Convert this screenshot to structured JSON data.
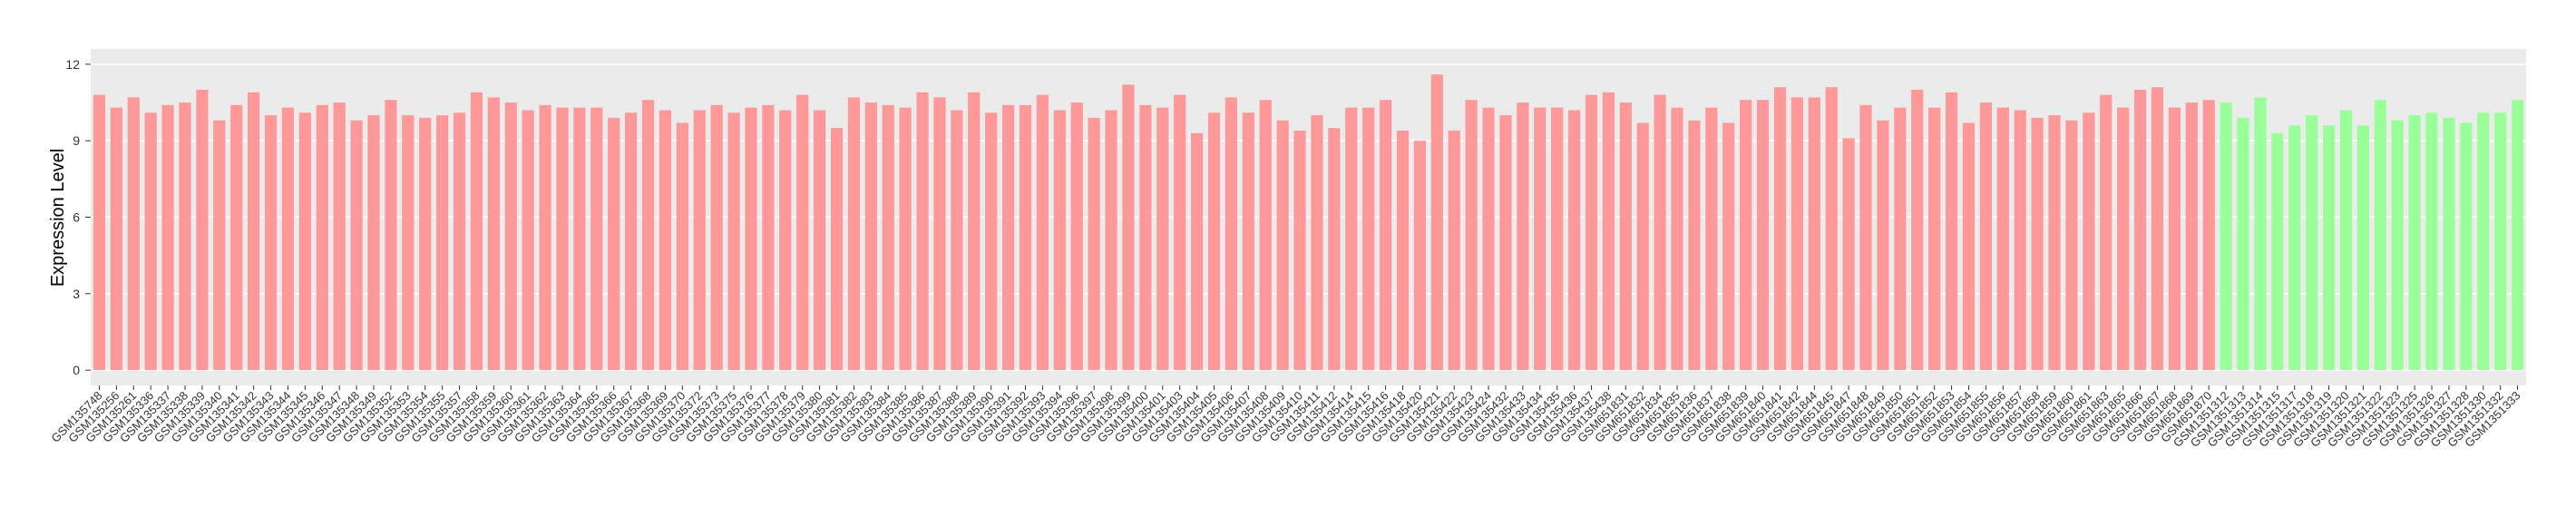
{
  "chart_data": {
    "type": "bar",
    "y_label": "Expression Level",
    "ylim": [
      -0.6,
      12.6
    ],
    "yticks": [
      0,
      3,
      6,
      9,
      12
    ],
    "grid": true,
    "groups": [
      {
        "color": "#ff9999",
        "categories": [
          "GSM135748",
          "GSM135256",
          "GSM135261",
          "GSM135336",
          "GSM135337",
          "GSM135338",
          "GSM135339",
          "GSM135340",
          "GSM135341",
          "GSM135342",
          "GSM135343",
          "GSM135344",
          "GSM135345",
          "GSM135346",
          "GSM135347",
          "GSM135348",
          "GSM135349",
          "GSM135352",
          "GSM135353",
          "GSM135354",
          "GSM135355",
          "GSM135357",
          "GSM135358",
          "GSM135359",
          "GSM135360",
          "GSM135361",
          "GSM135362",
          "GSM135363",
          "GSM135364",
          "GSM135365",
          "GSM135366",
          "GSM135367",
          "GSM135368",
          "GSM135369",
          "GSM135370",
          "GSM135372",
          "GSM135373",
          "GSM135375",
          "GSM135376",
          "GSM135377",
          "GSM135378",
          "GSM135379",
          "GSM135380",
          "GSM135381",
          "GSM135382",
          "GSM135383",
          "GSM135384",
          "GSM135385",
          "GSM135386",
          "GSM135387",
          "GSM135388",
          "GSM135389",
          "GSM135390",
          "GSM135391",
          "GSM135392",
          "GSM135393",
          "GSM135394",
          "GSM135396",
          "GSM135397",
          "GSM135398",
          "GSM135399",
          "GSM135400",
          "GSM135401",
          "GSM135403",
          "GSM135404",
          "GSM135405",
          "GSM135406",
          "GSM135407",
          "GSM135408",
          "GSM135409",
          "GSM135410",
          "GSM135411",
          "GSM135412",
          "GSM135414",
          "GSM135415",
          "GSM135416",
          "GSM135418",
          "GSM135420",
          "GSM135421",
          "GSM135422",
          "GSM135423",
          "GSM135424",
          "GSM135432",
          "GSM135433",
          "GSM135434",
          "GSM135435",
          "GSM135436",
          "GSM135437",
          "GSM135438",
          "GSM651831",
          "GSM651832",
          "GSM651834",
          "GSM651835",
          "GSM651836",
          "GSM651837",
          "GSM651838",
          "GSM651839",
          "GSM651840",
          "GSM651841",
          "GSM651842",
          "GSM651844",
          "GSM651845",
          "GSM651847",
          "GSM651848",
          "GSM651849",
          "GSM651850",
          "GSM651851",
          "GSM651852",
          "GSM651853",
          "GSM651854",
          "GSM651855",
          "GSM651856",
          "GSM651857",
          "GSM651858",
          "GSM651859",
          "GSM651860",
          "GSM651861",
          "GSM651863",
          "GSM651865",
          "GSM651866",
          "GSM651867",
          "GSM651868",
          "GSM651869",
          "GSM651870"
        ],
        "values": [
          10.8,
          10.3,
          10.7,
          10.1,
          10.4,
          10.5,
          11.0,
          9.8,
          10.4,
          10.9,
          10.0,
          10.3,
          10.1,
          10.4,
          10.5,
          9.8,
          10.0,
          10.6,
          10.0,
          9.9,
          10.0,
          10.1,
          10.9,
          10.7,
          10.5,
          10.2,
          10.4,
          10.3,
          10.3,
          10.3,
          9.9,
          10.1,
          10.6,
          10.2,
          9.7,
          10.2,
          10.4,
          10.1,
          10.3,
          10.4,
          10.2,
          10.8,
          10.2,
          9.5,
          10.7,
          10.5,
          10.4,
          10.3,
          10.9,
          10.7,
          10.2,
          10.9,
          10.1,
          10.4,
          10.4,
          10.8,
          10.2,
          10.5,
          9.9,
          10.2,
          11.2,
          10.4,
          10.3,
          10.8,
          9.3,
          10.1,
          10.7,
          10.1,
          10.6,
          9.8,
          9.4,
          10.0,
          9.5,
          10.3,
          10.3,
          10.6,
          9.4,
          9.0,
          11.6,
          9.4,
          10.6,
          10.3,
          10.0,
          10.5,
          10.3,
          10.3,
          10.2,
          10.8,
          10.9,
          10.5,
          9.7,
          10.8,
          10.3,
          9.8,
          10.3,
          9.7,
          10.6,
          10.6,
          11.1,
          10.7,
          10.7,
          11.1,
          9.1,
          10.4,
          9.8,
          10.3,
          11.0,
          10.3,
          10.9,
          9.7,
          10.5,
          10.3,
          10.2,
          9.9,
          10.0,
          9.8,
          10.1,
          10.8,
          10.3,
          11.0,
          11.1,
          10.3,
          10.5,
          10.6
        ]
      },
      {
        "color": "#99ff99",
        "categories": [
          "GSM1351312",
          "GSM1351313",
          "GSM1351314",
          "GSM1351315",
          "GSM1351317",
          "GSM1351318",
          "GSM1351319",
          "GSM1351320",
          "GSM1351321",
          "GSM1351322",
          "GSM1351323",
          "GSM1351325",
          "GSM1351326",
          "GSM1351327",
          "GSM1351328",
          "GSM1351330",
          "GSM1351332",
          "GSM1351333"
        ],
        "values": [
          10.5,
          9.9,
          10.7,
          9.3,
          9.6,
          10.0,
          9.6,
          10.2,
          9.6,
          10.6,
          9.8,
          10.0,
          10.1,
          9.9,
          9.7,
          10.1,
          10.1,
          10.6
        ]
      }
    ]
  }
}
